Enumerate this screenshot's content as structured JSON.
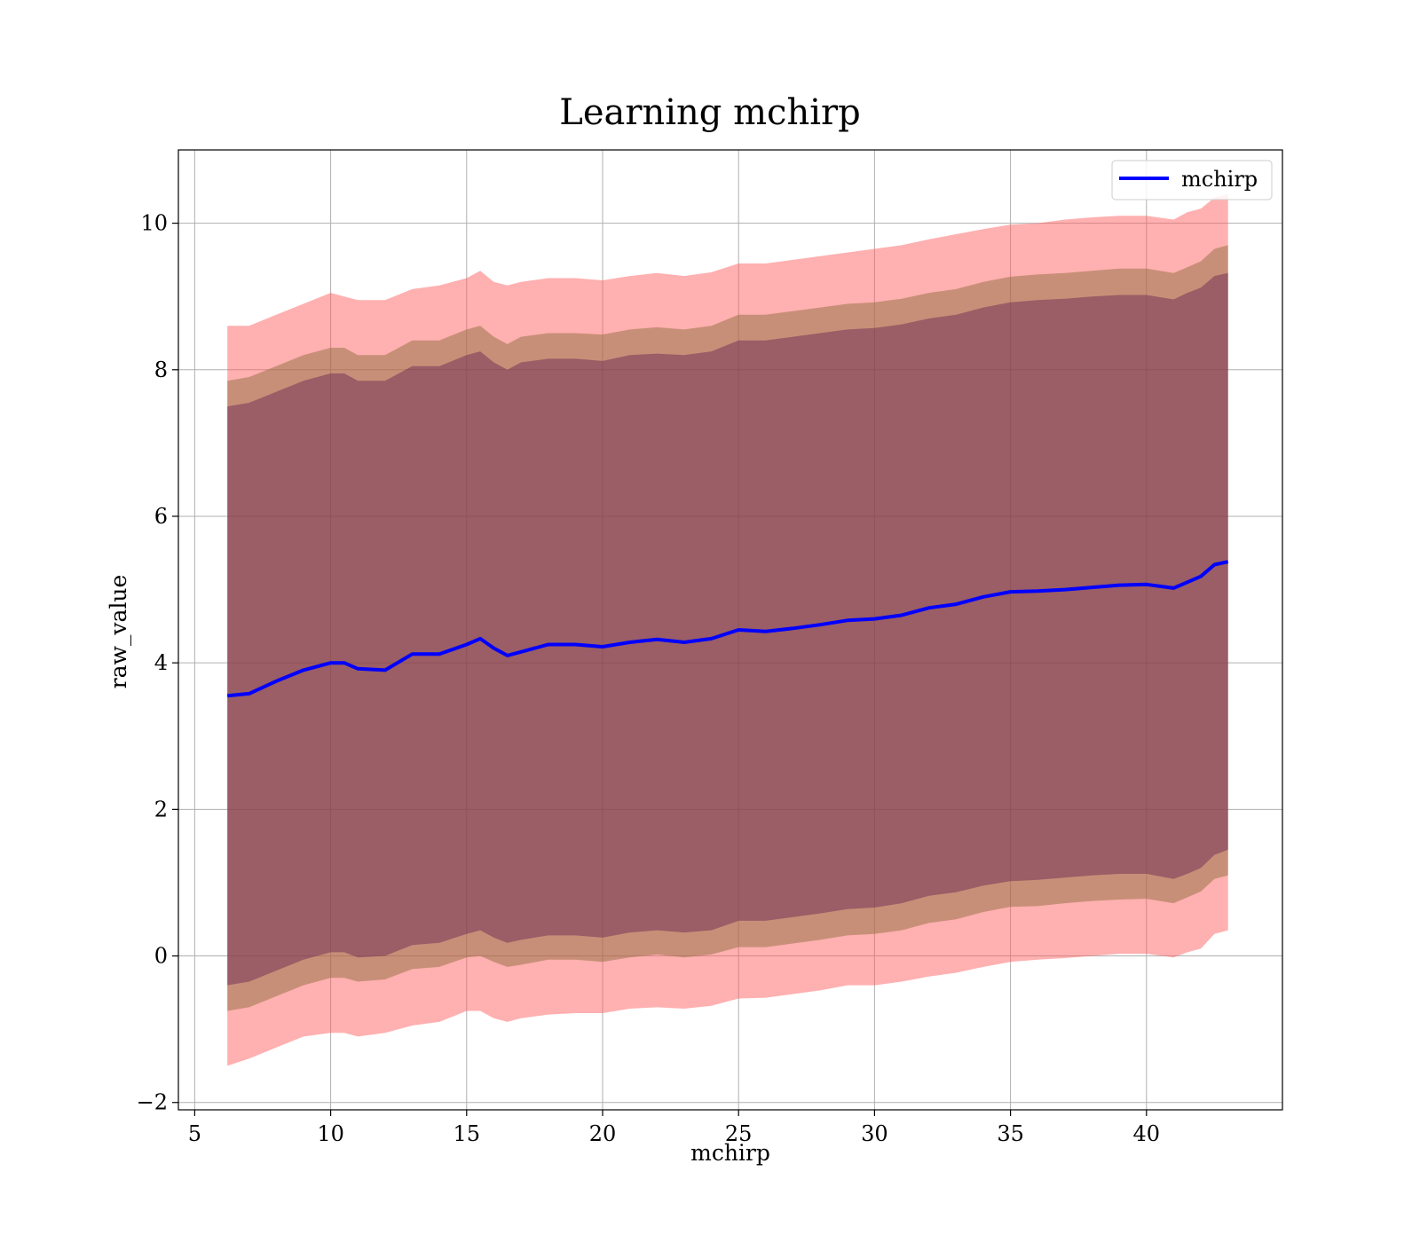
{
  "chart_data": {
    "type": "area",
    "title": "Learning mchirp",
    "xlabel": "mchirp",
    "ylabel": "raw_value",
    "xlim": [
      4.4,
      45.0
    ],
    "ylim": [
      -2.1,
      11.0
    ],
    "x_ticks": [
      5,
      10,
      15,
      20,
      25,
      30,
      35,
      40
    ],
    "x_tick_labels": [
      "5",
      "10",
      "15",
      "20",
      "25",
      "30",
      "35",
      "40"
    ],
    "y_ticks": [
      -2,
      0,
      2,
      4,
      6,
      8,
      10
    ],
    "y_tick_labels": [
      "−2",
      "0",
      "2",
      "4",
      "6",
      "8",
      "10"
    ],
    "grid": true,
    "legend": {
      "position": "top-right",
      "entries": [
        "mchirp"
      ]
    },
    "colors": {
      "line": "#0000ff",
      "band": "#ff0000",
      "band_inner_blend": "#8b3a3a",
      "grid": "#b0b0b0"
    },
    "x": [
      6.2,
      7.0,
      8.0,
      9.0,
      10.0,
      10.5,
      11.0,
      12.0,
      13.0,
      14.0,
      15.0,
      15.5,
      16.0,
      16.5,
      17.0,
      18.0,
      19.0,
      20.0,
      21.0,
      22.0,
      23.0,
      24.0,
      25.0,
      26.0,
      27.0,
      28.0,
      29.0,
      30.0,
      31.0,
      32.0,
      33.0,
      34.0,
      35.0,
      36.0,
      37.0,
      38.0,
      39.0,
      40.0,
      41.0,
      41.5,
      42.0,
      42.5,
      43.0
    ],
    "series": [
      {
        "name": "mchirp",
        "values": [
          3.55,
          3.58,
          3.75,
          3.9,
          4.0,
          4.0,
          3.92,
          3.9,
          4.12,
          4.12,
          4.25,
          4.33,
          4.2,
          4.1,
          4.15,
          4.25,
          4.25,
          4.22,
          4.28,
          4.32,
          4.28,
          4.33,
          4.45,
          4.43,
          4.47,
          4.52,
          4.58,
          4.6,
          4.65,
          4.75,
          4.8,
          4.9,
          4.97,
          4.98,
          5.0,
          5.03,
          5.06,
          5.07,
          5.02,
          5.1,
          5.18,
          5.34,
          5.38
        ]
      }
    ],
    "bands": [
      {
        "lower": [
          -1.5,
          -1.4,
          -1.25,
          -1.1,
          -1.05,
          -1.05,
          -1.1,
          -1.05,
          -0.95,
          -0.9,
          -0.75,
          -0.75,
          -0.85,
          -0.9,
          -0.85,
          -0.8,
          -0.78,
          -0.78,
          -0.72,
          -0.7,
          -0.72,
          -0.68,
          -0.58,
          -0.57,
          -0.52,
          -0.47,
          -0.4,
          -0.4,
          -0.35,
          -0.28,
          -0.23,
          -0.15,
          -0.08,
          -0.05,
          -0.03,
          0.0,
          0.03,
          0.03,
          -0.02,
          0.05,
          0.1,
          0.3,
          0.35
        ],
        "upper": [
          8.6,
          8.6,
          8.75,
          8.9,
          9.05,
          9.0,
          8.95,
          8.95,
          9.1,
          9.15,
          9.25,
          9.35,
          9.2,
          9.15,
          9.2,
          9.25,
          9.25,
          9.22,
          9.28,
          9.32,
          9.28,
          9.33,
          9.45,
          9.45,
          9.5,
          9.55,
          9.6,
          9.65,
          9.7,
          9.78,
          9.85,
          9.92,
          9.98,
          10.0,
          10.05,
          10.08,
          10.1,
          10.1,
          10.05,
          10.15,
          10.2,
          10.35,
          10.4
        ]
      },
      {
        "lower": [
          -0.75,
          -0.7,
          -0.55,
          -0.4,
          -0.3,
          -0.3,
          -0.35,
          -0.32,
          -0.18,
          -0.15,
          -0.02,
          0.0,
          -0.08,
          -0.15,
          -0.12,
          -0.05,
          -0.05,
          -0.08,
          -0.02,
          0.02,
          -0.02,
          0.02,
          0.12,
          0.12,
          0.17,
          0.22,
          0.28,
          0.3,
          0.35,
          0.45,
          0.5,
          0.6,
          0.67,
          0.68,
          0.72,
          0.75,
          0.77,
          0.78,
          0.72,
          0.8,
          0.88,
          1.05,
          1.1
        ],
        "upper": [
          7.85,
          7.9,
          8.05,
          8.2,
          8.3,
          8.3,
          8.2,
          8.2,
          8.4,
          8.4,
          8.55,
          8.6,
          8.45,
          8.35,
          8.45,
          8.5,
          8.5,
          8.48,
          8.55,
          8.58,
          8.55,
          8.6,
          8.75,
          8.75,
          8.8,
          8.85,
          8.9,
          8.92,
          8.97,
          9.05,
          9.1,
          9.2,
          9.27,
          9.3,
          9.32,
          9.35,
          9.38,
          9.38,
          9.32,
          9.4,
          9.48,
          9.65,
          9.7
        ]
      },
      {
        "lower": [
          -0.4,
          -0.35,
          -0.2,
          -0.05,
          0.05,
          0.05,
          -0.02,
          0.0,
          0.15,
          0.18,
          0.3,
          0.35,
          0.25,
          0.18,
          0.22,
          0.28,
          0.28,
          0.25,
          0.32,
          0.35,
          0.32,
          0.35,
          0.48,
          0.48,
          0.53,
          0.58,
          0.64,
          0.66,
          0.72,
          0.82,
          0.87,
          0.96,
          1.02,
          1.04,
          1.07,
          1.1,
          1.12,
          1.12,
          1.05,
          1.12,
          1.2,
          1.38,
          1.45
        ],
        "upper": [
          7.5,
          7.55,
          7.7,
          7.85,
          7.95,
          7.95,
          7.85,
          7.85,
          8.05,
          8.05,
          8.2,
          8.25,
          8.1,
          8.0,
          8.1,
          8.15,
          8.15,
          8.12,
          8.2,
          8.22,
          8.2,
          8.25,
          8.4,
          8.4,
          8.45,
          8.5,
          8.55,
          8.57,
          8.62,
          8.7,
          8.75,
          8.85,
          8.92,
          8.95,
          8.97,
          9.0,
          9.02,
          9.02,
          8.96,
          9.05,
          9.12,
          9.28,
          9.32
        ]
      }
    ]
  }
}
